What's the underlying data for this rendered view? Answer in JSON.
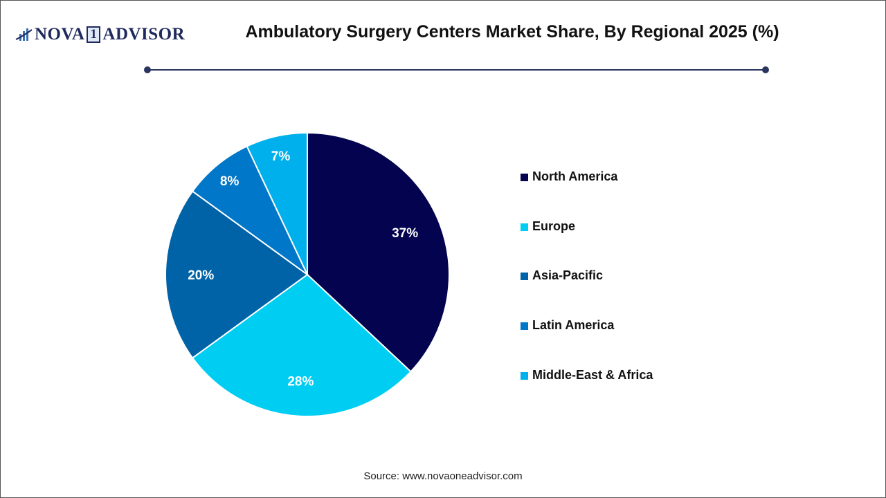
{
  "header": {
    "logo_text": "NOVA 1 ADVISOR",
    "title": "Ambulatory Surgery Centers Market Share, By Regional 2025 (%)"
  },
  "chart_data": {
    "type": "pie",
    "title": "Ambulatory Surgery Centers Market Share, By Regional 2025 (%)",
    "categories": [
      "North America",
      "Europe",
      "Asia-Pacific",
      "Latin America",
      "Middle-East & Africa"
    ],
    "values": [
      37,
      28,
      20,
      8,
      7
    ],
    "labels": [
      "37%",
      "28%",
      "20%",
      "8%",
      "7%"
    ],
    "colors": [
      "#03034f",
      "#00cdf2",
      "#0063a8",
      "#0077c8",
      "#00b0ec"
    ],
    "legend_position": "right"
  },
  "footer": {
    "source": "Source: www.novaoneadvisor.com"
  }
}
